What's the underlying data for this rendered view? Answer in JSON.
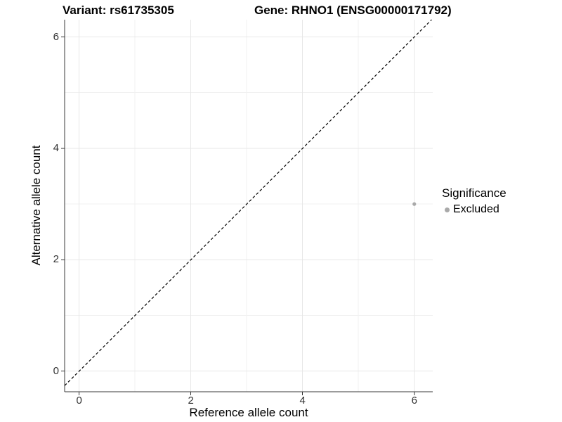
{
  "chart_data": {
    "type": "scatter",
    "titles": {
      "left": "Variant: rs61735305",
      "right": "Gene: RHNO1 (ENSG00000171792)"
    },
    "xlabel": "Reference allele count",
    "ylabel": "Alternative allele count",
    "xlim": [
      -0.26,
      6.33
    ],
    "ylim": [
      -0.37,
      6.31
    ],
    "x_ticks": [
      0,
      2,
      4,
      6
    ],
    "y_ticks": [
      0,
      2,
      4,
      6
    ],
    "x_minor_ticks": [
      1,
      3,
      5
    ],
    "y_minor_ticks": [
      1,
      3,
      5
    ],
    "grid": "major and minor, light gray on white",
    "reference_line": {
      "equation": "y = x",
      "style": "dashed",
      "color": "#000000"
    },
    "series": [
      {
        "name": "Excluded",
        "color": "#a9a9a9",
        "marker": "circle",
        "points": [
          {
            "x": 6,
            "y": 3
          }
        ]
      }
    ],
    "legend": {
      "title": "Significance",
      "position": "right",
      "items": [
        {
          "label": "Excluded",
          "color": "#a9a9a9"
        }
      ]
    }
  },
  "colors": {
    "background": "#ffffff",
    "grid_major": "#e7e7e7",
    "grid_minor": "#f1f1f1",
    "axis_line": "#3a3a3a",
    "tick_mark": "#333333",
    "tick_label": "#333333",
    "title_text": "#000000",
    "excluded_point": "#a9a9a9"
  }
}
